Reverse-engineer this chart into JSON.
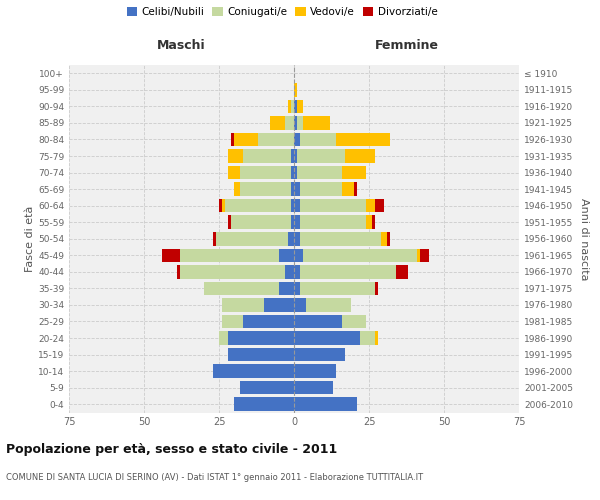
{
  "age_groups": [
    "0-4",
    "5-9",
    "10-14",
    "15-19",
    "20-24",
    "25-29",
    "30-34",
    "35-39",
    "40-44",
    "45-49",
    "50-54",
    "55-59",
    "60-64",
    "65-69",
    "70-74",
    "75-79",
    "80-84",
    "85-89",
    "90-94",
    "95-99",
    "100+"
  ],
  "birth_years": [
    "2006-2010",
    "2001-2005",
    "1996-2000",
    "1991-1995",
    "1986-1990",
    "1981-1985",
    "1976-1980",
    "1971-1975",
    "1966-1970",
    "1961-1965",
    "1956-1960",
    "1951-1955",
    "1946-1950",
    "1941-1945",
    "1936-1940",
    "1931-1935",
    "1926-1930",
    "1921-1925",
    "1916-1920",
    "1911-1915",
    "≤ 1910"
  ],
  "male": {
    "celibi": [
      20,
      18,
      27,
      22,
      22,
      17,
      10,
      5,
      3,
      5,
      2,
      1,
      1,
      1,
      1,
      1,
      0,
      0,
      0,
      0,
      0
    ],
    "coniugati": [
      0,
      0,
      0,
      0,
      3,
      7,
      14,
      25,
      35,
      33,
      24,
      20,
      22,
      17,
      17,
      16,
      12,
      3,
      1,
      0,
      0
    ],
    "vedovi": [
      0,
      0,
      0,
      0,
      0,
      0,
      0,
      0,
      0,
      0,
      0,
      0,
      1,
      2,
      4,
      5,
      8,
      5,
      1,
      0,
      0
    ],
    "divorziati": [
      0,
      0,
      0,
      0,
      0,
      0,
      0,
      0,
      1,
      6,
      1,
      1,
      1,
      0,
      0,
      0,
      1,
      0,
      0,
      0,
      0
    ]
  },
  "female": {
    "nubili": [
      21,
      13,
      14,
      17,
      22,
      16,
      4,
      2,
      2,
      3,
      2,
      2,
      2,
      2,
      1,
      1,
      2,
      1,
      1,
      0,
      0
    ],
    "coniugate": [
      0,
      0,
      0,
      0,
      5,
      8,
      15,
      25,
      32,
      38,
      27,
      22,
      22,
      14,
      15,
      16,
      12,
      2,
      0,
      0,
      0
    ],
    "vedove": [
      0,
      0,
      0,
      0,
      1,
      0,
      0,
      0,
      0,
      1,
      2,
      2,
      3,
      4,
      8,
      10,
      18,
      9,
      2,
      1,
      0
    ],
    "divorziate": [
      0,
      0,
      0,
      0,
      0,
      0,
      0,
      1,
      4,
      3,
      1,
      1,
      3,
      1,
      0,
      0,
      0,
      0,
      0,
      0,
      0
    ]
  },
  "colors": {
    "celibi": "#4472c4",
    "coniugati": "#c5d9a0",
    "vedovi": "#ffc000",
    "divorziati": "#c00000"
  },
  "xlim": 75,
  "title": "Popolazione per età, sesso e stato civile - 2011",
  "subtitle": "COMUNE DI SANTA LUCIA DI SERINO (AV) - Dati ISTAT 1° gennaio 2011 - Elaborazione TUTTITALIA.IT",
  "xlabel_left": "Maschi",
  "xlabel_right": "Femmine",
  "ylabel_left": "Fasce di età",
  "ylabel_right": "Anni di nascita",
  "bg_color": "#ffffff",
  "plot_bg_color": "#f0f0f0"
}
